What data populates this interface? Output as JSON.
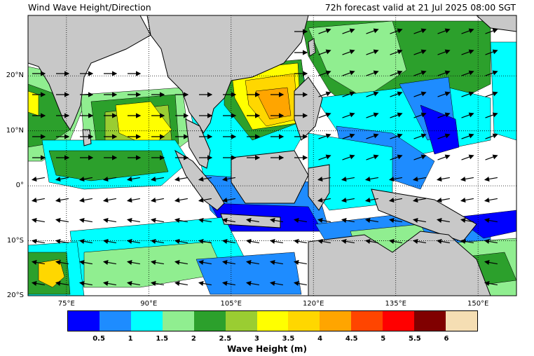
{
  "header": {
    "title": "Wind Wave Height/Direction",
    "valid_time": "72h forecast valid at 21 Jul 2025 08:00 SGT"
  },
  "map": {
    "lon_range": [
      68,
      157
    ],
    "lat_range": [
      -20,
      31
    ],
    "lat_ticks": [
      {
        "value": 20,
        "label": "20°N"
      },
      {
        "value": 10,
        "label": "10°N"
      },
      {
        "value": 0,
        "label": "0°"
      },
      {
        "value": -10,
        "label": "10°S"
      },
      {
        "value": -20,
        "label": "20°S"
      }
    ],
    "lon_ticks": [
      {
        "value": 75,
        "label": "75°E"
      },
      {
        "value": 90,
        "label": "90°E"
      },
      {
        "value": 105,
        "label": "105°E"
      },
      {
        "value": 120,
        "label": "120°E"
      },
      {
        "value": 135,
        "label": "135°E"
      },
      {
        "value": 150,
        "label": "150°E"
      }
    ],
    "colors": {
      "land": "#c8c8c8",
      "sea_calm": "#ffffff",
      "grid": "#000000"
    }
  },
  "colorbar": {
    "label": "Wave Height (m)",
    "colors": [
      "#0000ff",
      "#1e8cff",
      "#00ffff",
      "#90ee90",
      "#2ca02c",
      "#9acd32",
      "#ffff00",
      "#ffd700",
      "#ffa500",
      "#ff4500",
      "#ff0000",
      "#800000",
      "#f5deb3"
    ],
    "ticks": [
      "0.5",
      "1",
      "1.5",
      "2",
      "2.5",
      "3",
      "3.5",
      "4",
      "4.5",
      "5",
      "5.5",
      "6"
    ]
  }
}
